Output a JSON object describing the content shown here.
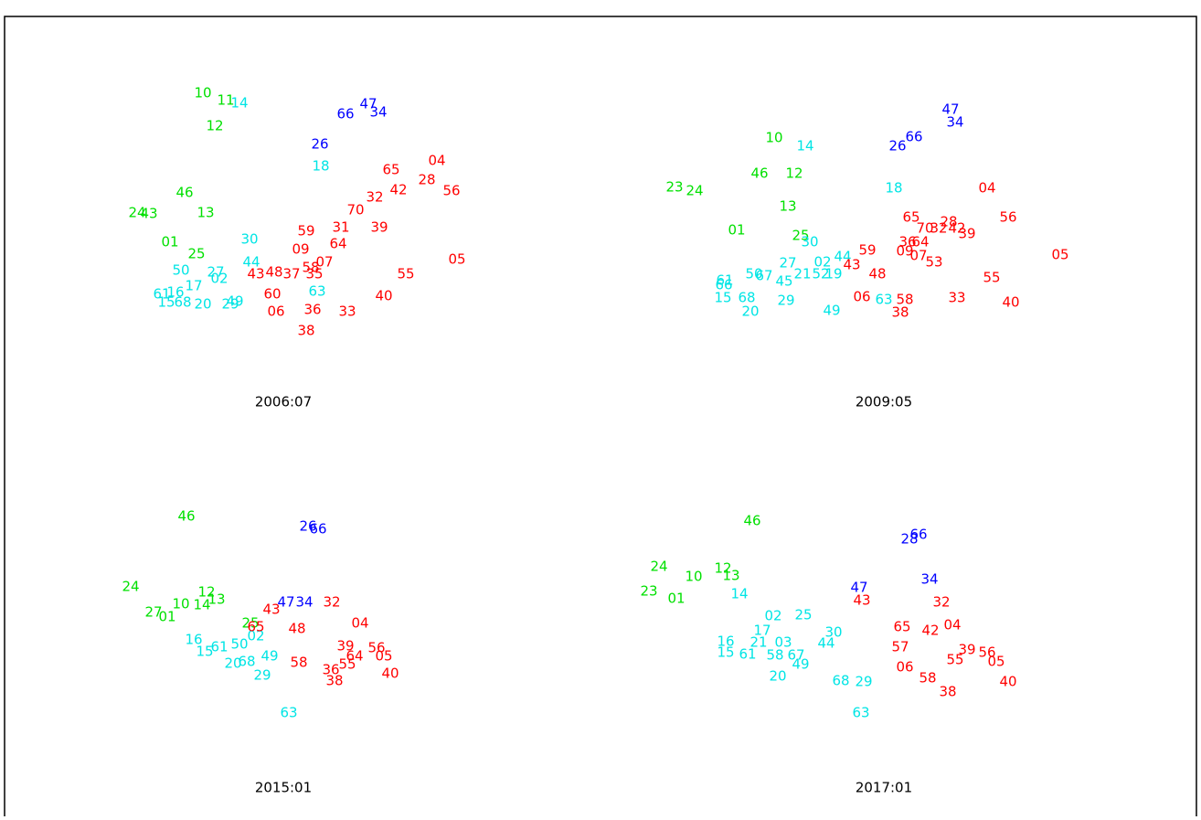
{
  "chart_data": [
    {
      "type": "scatter",
      "title": "2006:07",
      "xlim": [
        0,
        657
      ],
      "ylim": [
        446,
        0
      ],
      "series": [
        {
          "color": "#00e000",
          "labels": [
            "10",
            "11",
            "12",
            "46",
            "24",
            "43",
            "13",
            "01",
            "25"
          ],
          "x": [
            222,
            247,
            235,
            202,
            150,
            163,
            225,
            186,
            215
          ],
          "y": [
            102,
            110,
            138,
            211,
            233,
            234,
            233,
            265,
            278
          ]
        },
        {
          "color": "#00e5e5",
          "labels": [
            "14",
            "18",
            "30",
            "44",
            "50",
            "27",
            "02",
            "17",
            "61",
            "16",
            "15",
            "68",
            "20",
            "29",
            "63",
            "49"
          ],
          "x": [
            262,
            351,
            273,
            275,
            198,
            236,
            240,
            212,
            177,
            192,
            182,
            200,
            222,
            252,
            347,
            257
          ],
          "y": [
            113,
            182,
            262,
            287,
            296,
            298,
            305,
            313,
            322,
            320,
            331,
            331,
            333,
            333,
            319,
            330
          ]
        },
        {
          "color": "#0000ff",
          "labels": [
            "66",
            "47",
            "34",
            "26"
          ],
          "x": [
            378,
            403,
            414,
            350
          ],
          "y": [
            125,
            114,
            123,
            158
          ]
        },
        {
          "color": "#ff0000",
          "labels": [
            "04",
            "65",
            "28",
            "56",
            "42",
            "32",
            "70",
            "59",
            "31",
            "39",
            "09",
            "64",
            "07",
            "58",
            "43",
            "48",
            "37",
            "35",
            "55",
            "05",
            "60",
            "40",
            "36",
            "33",
            "06",
            "38"
          ],
          "x": [
            478,
            428,
            467,
            494,
            436,
            410,
            389,
            335,
            373,
            415,
            329,
            370,
            355,
            340,
            280,
            300,
            319,
            344,
            444,
            500,
            298,
            420,
            342,
            380,
            302,
            335
          ],
          "y": [
            176,
            186,
            197,
            209,
            208,
            216,
            230,
            253,
            249,
            249,
            273,
            267,
            287,
            293,
            300,
            298,
            300,
            300,
            300,
            284,
            322,
            324,
            339,
            341,
            341,
            362
          ]
        }
      ]
    },
    {
      "type": "scatter",
      "title": "2009:05",
      "xlim": [
        0,
        657
      ],
      "ylim": [
        446,
        0
      ],
      "series": [
        {
          "color": "#00e000",
          "labels": [
            "10",
            "46",
            "12",
            "23",
            "24",
            "13",
            "01",
            "25"
          ],
          "x": [
            190,
            174,
            212,
            81,
            103,
            205,
            149,
            219
          ],
          "y": [
            151,
            190,
            190,
            205,
            209,
            226,
            252,
            258
          ]
        },
        {
          "color": "#00e5e5",
          "labels": [
            "14",
            "30",
            "18",
            "02",
            "44",
            "27",
            "50",
            "67",
            "45",
            "21",
            "52",
            "19",
            "61",
            "66",
            "15",
            "68",
            "20",
            "29",
            "49",
            "63"
          ],
          "x": [
            224,
            229,
            321,
            243,
            265,
            205,
            168,
            179,
            201,
            221,
            241,
            255,
            136,
            135,
            134,
            160,
            164,
            203,
            253,
            310
          ],
          "y": [
            160,
            265,
            206,
            287,
            281,
            288,
            300,
            302,
            308,
            300,
            300,
            300,
            307,
            312,
            326,
            326,
            341,
            329,
            340,
            328
          ]
        },
        {
          "color": "#0000ff",
          "labels": [
            "47",
            "34",
            "66",
            "26"
          ],
          "x": [
            383,
            388,
            343,
            325
          ],
          "y": [
            120,
            134,
            150,
            160
          ]
        },
        {
          "color": "#ff0000",
          "labels": [
            "04",
            "56",
            "05",
            "65",
            "28",
            "70",
            "32",
            "42",
            "39",
            "59",
            "36",
            "64",
            "09",
            "07",
            "53",
            "43",
            "48",
            "40",
            "55",
            "33",
            "06",
            "58",
            "38"
          ],
          "x": [
            423,
            446,
            503,
            340,
            381,
            355,
            370,
            390,
            401,
            292,
            336,
            350,
            333,
            348,
            365,
            275,
            303,
            449,
            428,
            390,
            286,
            333,
            328
          ],
          "y": [
            206,
            238,
            279,
            238,
            243,
            250,
            250,
            250,
            256,
            274,
            265,
            265,
            275,
            280,
            287,
            290,
            300,
            331,
            304,
            326,
            325,
            328,
            342
          ]
        }
      ]
    },
    {
      "type": "scatter",
      "title": "2015:01",
      "xlim": [
        0,
        657
      ],
      "ylim": [
        446,
        0
      ],
      "series": [
        {
          "color": "#00e000",
          "labels": [
            "46",
            "24",
            "27",
            "01",
            "10",
            "12",
            "14",
            "13",
            "25"
          ],
          "x": [
            204,
            143,
            168,
            183,
            198,
            226,
            221,
            237,
            274
          ],
          "y": [
            119,
            196,
            224,
            229,
            215,
            202,
            216,
            210,
            236
          ]
        },
        {
          "color": "#00e5e5",
          "labels": [
            "16",
            "15",
            "61",
            "20",
            "68",
            "29",
            "49",
            "63",
            "50",
            "02"
          ],
          "x": [
            212,
            224,
            240,
            255,
            270,
            287,
            295,
            316,
            262,
            280
          ],
          "y": [
            254,
            267,
            262,
            280,
            278,
            293,
            272,
            334,
            259,
            250
          ]
        },
        {
          "color": "#0000ff",
          "labels": [
            "26",
            "66",
            "47",
            "34"
          ],
          "x": [
            337,
            348,
            313,
            333
          ],
          "y": [
            130,
            133,
            213,
            213
          ]
        },
        {
          "color": "#ff0000",
          "labels": [
            "32",
            "43",
            "65",
            "04",
            "39",
            "56",
            "05",
            "64",
            "55",
            "36",
            "40",
            "38",
            "58",
            "48"
          ],
          "x": [
            363,
            297,
            280,
            394,
            378,
            412,
            420,
            388,
            380,
            362,
            427,
            366,
            327,
            325
          ],
          "y": [
            213,
            221,
            240,
            236,
            261,
            263,
            272,
            272,
            281,
            287,
            291,
            299,
            279,
            242
          ]
        }
      ]
    },
    {
      "type": "scatter",
      "title": "2017:01",
      "xlim": [
        0,
        657
      ],
      "ylim": [
        446,
        0
      ],
      "series": [
        {
          "color": "#00e000",
          "labels": [
            "46",
            "24",
            "12",
            "10",
            "13",
            "23",
            "01"
          ],
          "x": [
            166,
            64,
            134,
            102,
            143,
            53,
            83
          ],
          "y": [
            124,
            174,
            176,
            185,
            184,
            201,
            209
          ]
        },
        {
          "color": "#00e5e5",
          "labels": [
            "14",
            "02",
            "17",
            "25",
            "30",
            "16",
            "21",
            "03",
            "15",
            "61",
            "58",
            "67",
            "49",
            "20",
            "68",
            "29",
            "63",
            "44"
          ],
          "x": [
            152,
            189,
            177,
            222,
            255,
            137,
            173,
            200,
            137,
            161,
            191,
            214,
            219,
            194,
            263,
            288,
            285,
            247
          ],
          "y": [
            204,
            228,
            244,
            227,
            246,
            256,
            257,
            257,
            268,
            270,
            271,
            271,
            281,
            294,
            299,
            300,
            334,
            258
          ]
        },
        {
          "color": "#0000ff",
          "labels": [
            "28",
            "66",
            "47",
            "34"
          ],
          "x": [
            338,
            348,
            283,
            360
          ],
          "y": [
            144,
            139,
            197,
            188
          ]
        },
        {
          "color": "#ff0000",
          "labels": [
            "43",
            "32",
            "04",
            "65",
            "42",
            "39",
            "56",
            "05",
            "40",
            "38",
            "06",
            "55",
            "57",
            "58"
          ],
          "x": [
            286,
            373,
            385,
            330,
            361,
            401,
            423,
            433,
            446,
            380,
            333,
            388,
            328,
            358
          ],
          "y": [
            211,
            213,
            238,
            240,
            244,
            265,
            268,
            278,
            300,
            311,
            284,
            276,
            262,
            296
          ]
        }
      ]
    }
  ]
}
